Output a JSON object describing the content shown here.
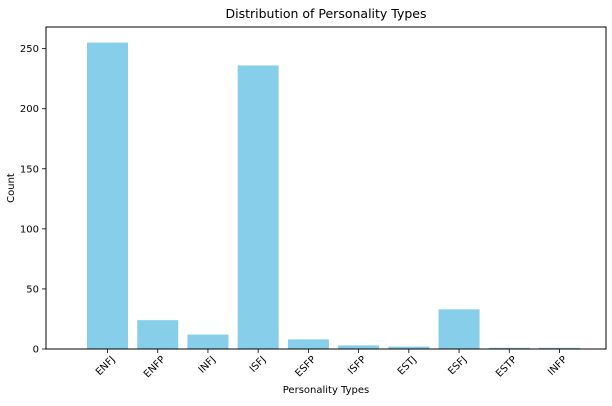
{
  "chart_data": {
    "type": "bar",
    "title": "Distribution of Personality Types",
    "xlabel": "Personality Types",
    "ylabel": "Count",
    "categories": [
      "ENFJ",
      "ENFP",
      "INFJ",
      "ISFJ",
      "ESFP",
      "ISFP",
      "ESTJ",
      "ESFJ",
      "ESTP",
      "INFP"
    ],
    "values": [
      255,
      24,
      12,
      236,
      8,
      3,
      2,
      33,
      1,
      1
    ],
    "ylim": [
      0,
      268
    ],
    "yticks": [
      0,
      50,
      100,
      150,
      200,
      250
    ],
    "grid": false,
    "legend": "none",
    "bar_color": "#87CEEB"
  }
}
